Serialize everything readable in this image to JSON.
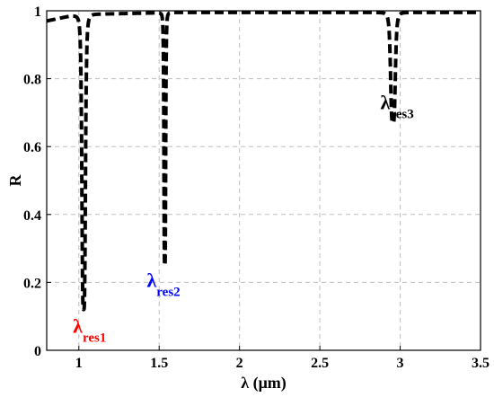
{
  "chart_data": {
    "type": "line",
    "xlabel": "λ (μm)",
    "ylabel": "R",
    "xlim": [
      0.8,
      3.5
    ],
    "ylim": [
      0,
      1
    ],
    "x_ticks": [
      "1",
      "1.5",
      "2",
      "2.5",
      "3",
      "3.5"
    ],
    "x_tick_values": [
      1,
      1.5,
      2,
      2.5,
      3,
      3.5
    ],
    "y_ticks": [
      "0",
      "0.2",
      "0.4",
      "0.6",
      "0.8",
      "1"
    ],
    "y_tick_values": [
      0,
      0.2,
      0.4,
      0.6,
      0.8,
      1
    ],
    "grid": true,
    "line_color": "#000000",
    "line_style": "dashed",
    "resonances": [
      {
        "x": 1.03,
        "min": 0.12,
        "width": 0.012
      },
      {
        "x": 1.535,
        "min": 0.25,
        "width": 0.006
      },
      {
        "x": 2.955,
        "min": 0.67,
        "width": 0.016
      }
    ],
    "baseline": [
      {
        "x": 0.8,
        "y": 0.97
      },
      {
        "x": 0.95,
        "y": 0.985
      },
      {
        "x": 1.1,
        "y": 0.99
      },
      {
        "x": 1.6,
        "y": 0.995
      },
      {
        "x": 3.5,
        "y": 0.995
      }
    ],
    "annotations": [
      {
        "main": "λ",
        "sub": "res1",
        "color": "#ff0000",
        "x": 1.03,
        "y": 0.12
      },
      {
        "main": "λ",
        "sub": "res2",
        "color": "#0000ff",
        "x": 1.535,
        "y": 0.25
      },
      {
        "main": "λ",
        "sub": "res3",
        "color": "#000000",
        "x": 2.955,
        "y": 0.67
      }
    ]
  }
}
